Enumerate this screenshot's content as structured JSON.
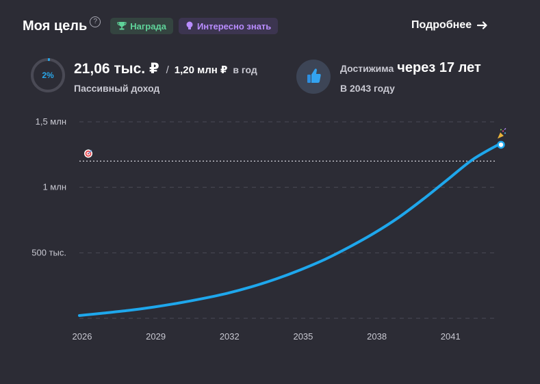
{
  "header": {
    "title": "Моя цель",
    "help_icon": "question-circle-icon",
    "badges": [
      {
        "label": "Награда",
        "icon": "trophy-icon",
        "color": "#5fd49a"
      },
      {
        "label": "Интересно знать",
        "icon": "lightbulb-icon",
        "color": "#b98cff"
      }
    ],
    "more_link": "Подробнее",
    "more_icon": "arrow-right-icon"
  },
  "summary": {
    "progress_label": "2%",
    "progress_percent": 2,
    "income_value": "21,06 тыс. ₽",
    "income_separator": "/",
    "income_target": "1,20 млн ₽",
    "income_period": "в год",
    "income_label": "Пассивный доход",
    "achieve_icon": "thumbs-up-icon",
    "achieve_prefix": "Достижима",
    "achieve_value": "через 17 лет",
    "achieve_year": "В 2043 году"
  },
  "chart_data": {
    "type": "line",
    "y_ticks": [
      {
        "value": 0,
        "label": ""
      },
      {
        "value": 500000,
        "label": "500 тыс."
      },
      {
        "value": 1000000,
        "label": "1 млн"
      },
      {
        "value": 1500000,
        "label": "1,5 млн"
      }
    ],
    "x_ticks": [
      {
        "value": 2026,
        "label": "2026"
      },
      {
        "value": 2029,
        "label": "2029"
      },
      {
        "value": 2032,
        "label": "2032"
      },
      {
        "value": 2035,
        "label": "2035"
      },
      {
        "value": 2038,
        "label": "2038"
      },
      {
        "value": 2041,
        "label": "2041"
      }
    ],
    "xlim": [
      2026,
      2043
    ],
    "ylim": [
      0,
      1500000
    ],
    "goal_value": 1200000,
    "goal_icon": "target-icon",
    "end_icon": "party-popper-icon",
    "line_color": "#1ea7ec",
    "series": [
      {
        "x": [
          2026,
          2027,
          2028,
          2029,
          2030,
          2031,
          2032,
          2033,
          2034,
          2035,
          2036,
          2037,
          2038,
          2039,
          2040,
          2041,
          2042,
          2043
        ],
        "values": [
          21060,
          40000,
          60000,
          85000,
          115000,
          150000,
          190000,
          240000,
          300000,
          370000,
          450000,
          545000,
          650000,
          770000,
          910000,
          1060000,
          1210000,
          1320000
        ]
      }
    ]
  }
}
